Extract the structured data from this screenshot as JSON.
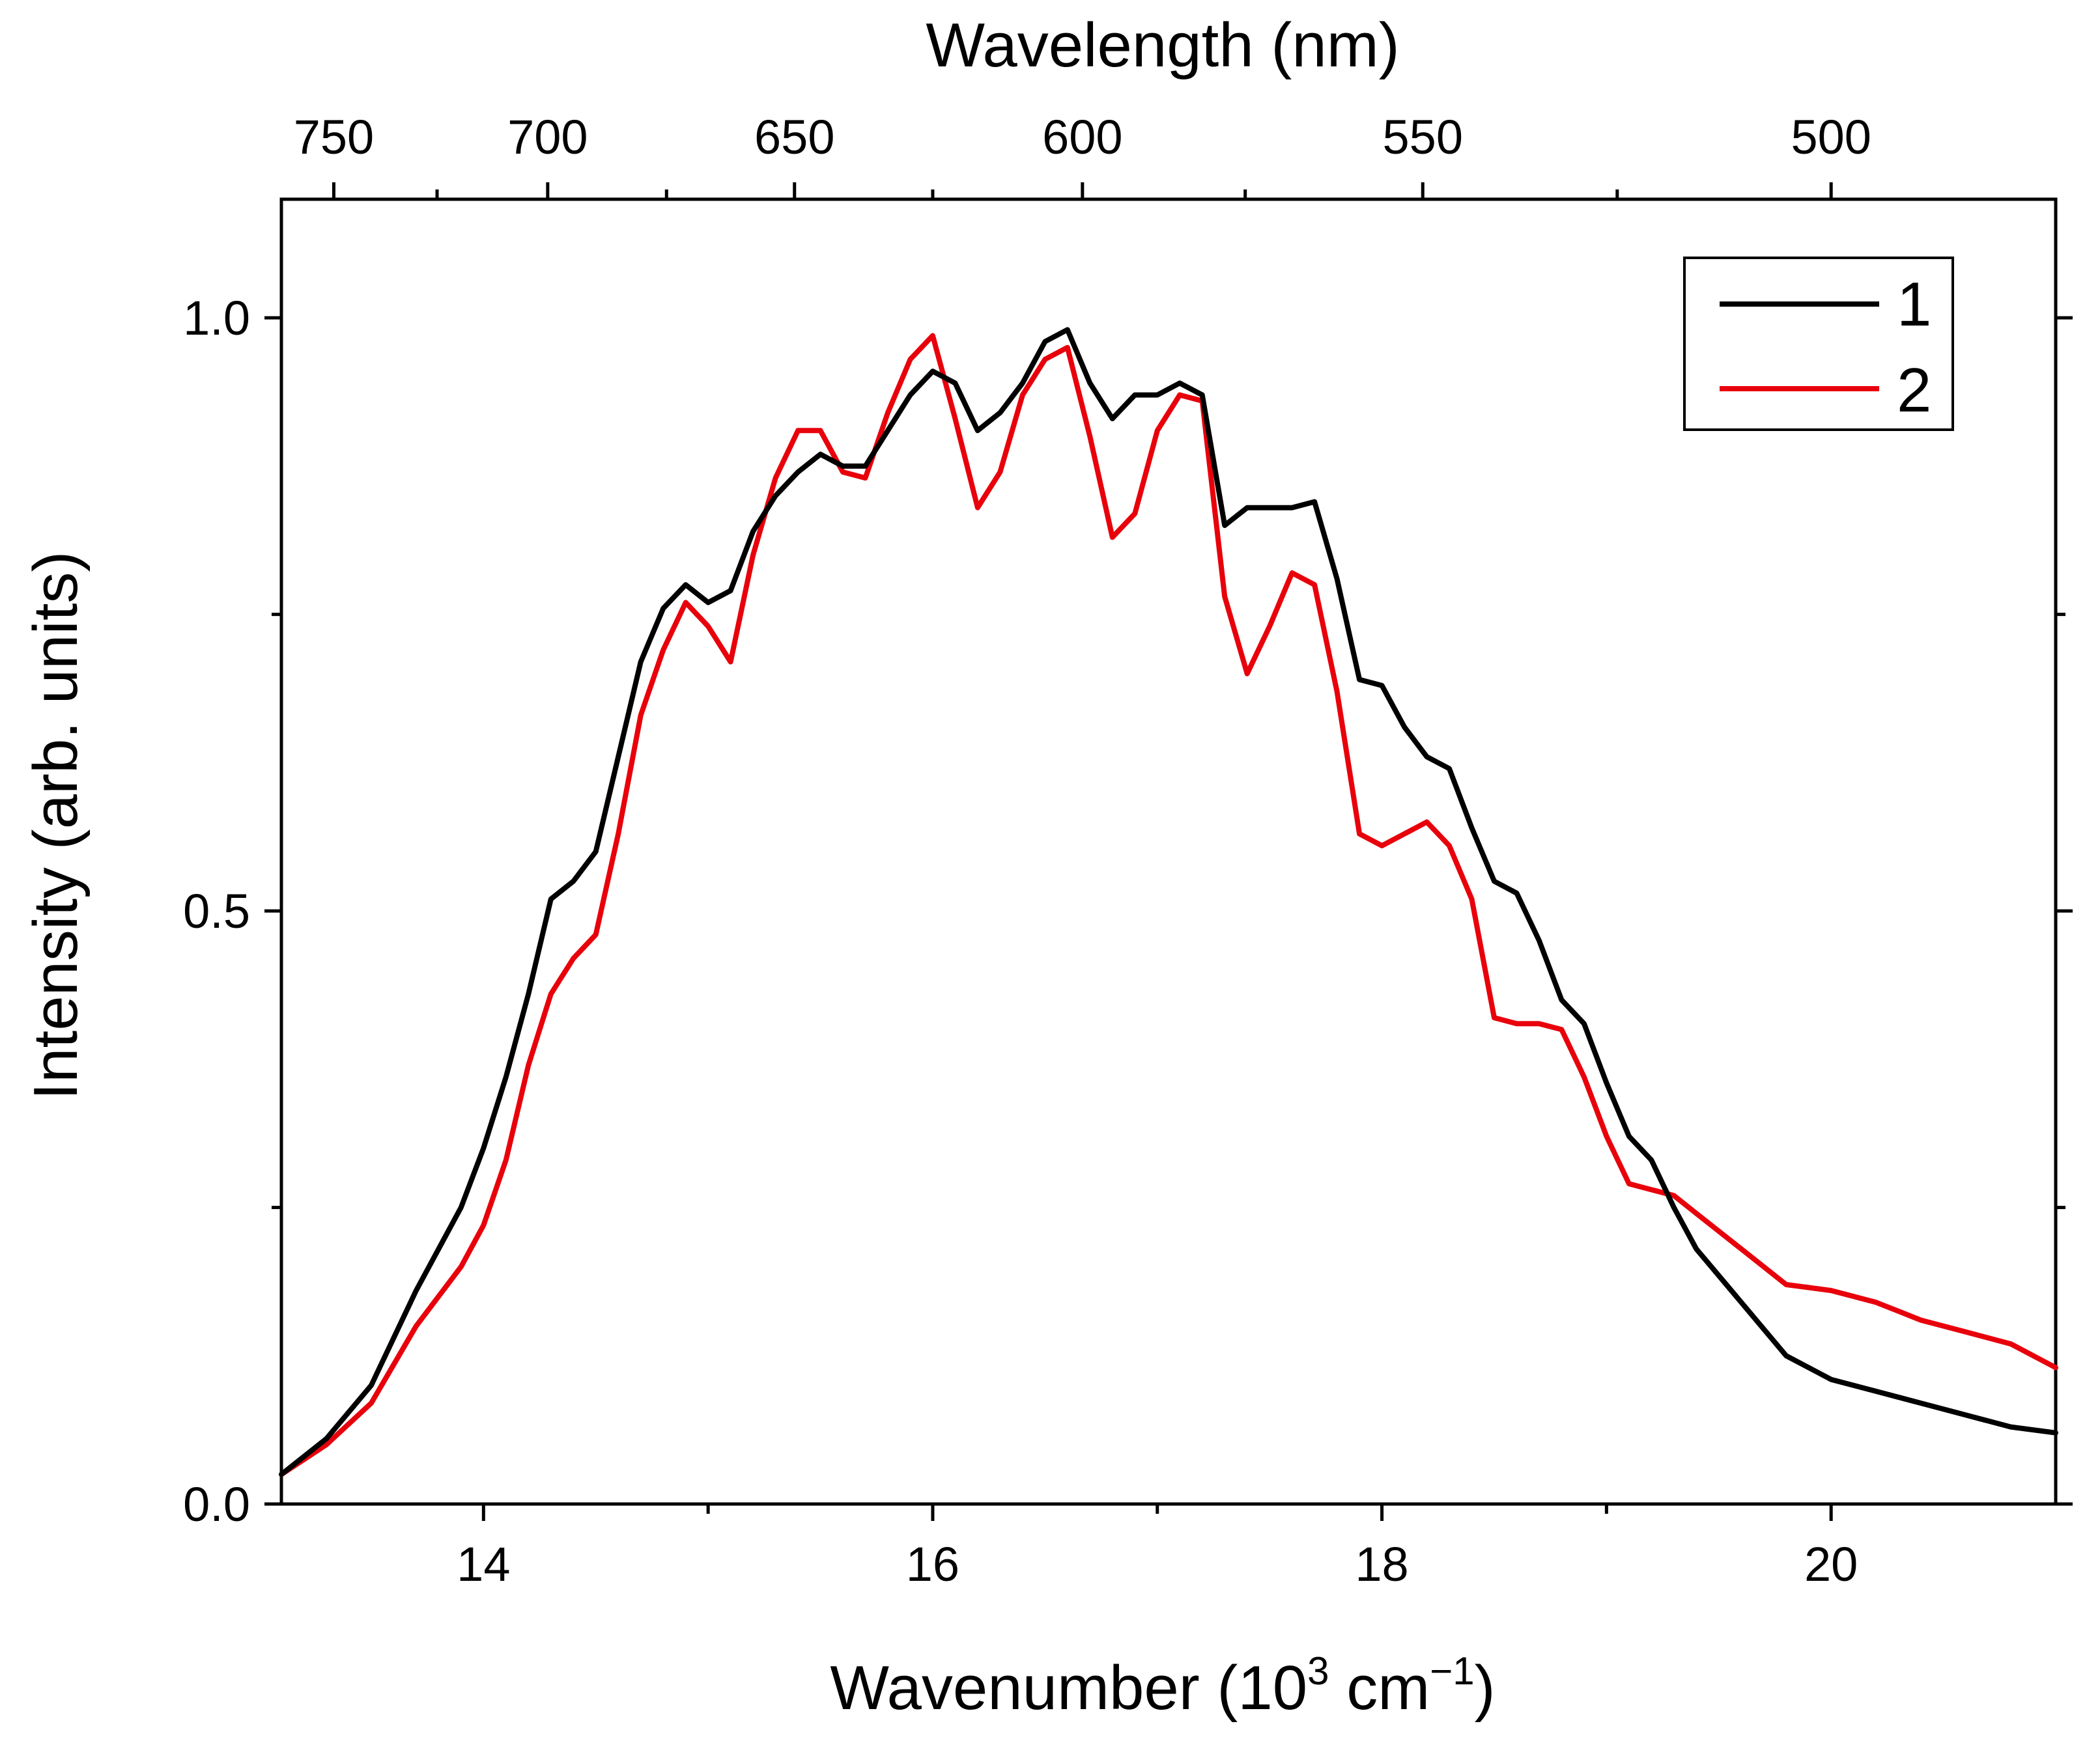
{
  "chart_data": {
    "type": "line",
    "title": "",
    "xlabel_prefix": "Wavenumber (10",
    "xlabel_sup1": "3",
    "xlabel_mid": " cm",
    "xlabel_sup2": "−1",
    "xlabel_suffix": ")",
    "ylabel": "Intensity (arb. units)",
    "top_xlabel": "Wavelength (nm)",
    "xlim": [
      13.1,
      21.0
    ],
    "ylim": [
      0.0,
      1.1
    ],
    "x_ticks": [
      14,
      16,
      18,
      20
    ],
    "x_tick_labels": [
      "14",
      "16",
      "18",
      "20"
    ],
    "x_minor_ticks": [
      15,
      17,
      19
    ],
    "y_ticks": [
      0.0,
      0.5,
      1.0
    ],
    "y_tick_labels": [
      "0.0",
      "0.5",
      "1.0"
    ],
    "y_minor_ticks": [
      0.25,
      0.75
    ],
    "top_ticks_nm": [
      750,
      700,
      650,
      600,
      550,
      500
    ],
    "top_tick_labels": [
      "750",
      "700",
      "650",
      "600",
      "550",
      "500"
    ],
    "top_minor_ticks_nm": [
      725,
      675,
      625,
      575,
      525
    ],
    "legend_position": "top-right",
    "series": [
      {
        "name": "1",
        "color": "#000000",
        "x": [
          13.1,
          13.3,
          13.5,
          13.7,
          13.9,
          14.0,
          14.1,
          14.2,
          14.3,
          14.4,
          14.5,
          14.6,
          14.7,
          14.8,
          14.9,
          15.0,
          15.1,
          15.2,
          15.3,
          15.4,
          15.5,
          15.6,
          15.7,
          15.8,
          15.9,
          16.0,
          16.1,
          16.2,
          16.3,
          16.4,
          16.5,
          16.6,
          16.7,
          16.8,
          16.9,
          17.0,
          17.1,
          17.2,
          17.3,
          17.4,
          17.5,
          17.6,
          17.7,
          17.8,
          17.9,
          18.0,
          18.1,
          18.2,
          18.3,
          18.4,
          18.5,
          18.6,
          18.7,
          18.8,
          18.9,
          19.0,
          19.1,
          19.2,
          19.3,
          19.4,
          19.6,
          19.8,
          20.0,
          20.2,
          20.4,
          20.6,
          20.8,
          21.0
        ],
        "y": [
          0.025,
          0.055,
          0.1,
          0.18,
          0.25,
          0.3,
          0.36,
          0.43,
          0.51,
          0.525,
          0.55,
          0.63,
          0.71,
          0.755,
          0.775,
          0.76,
          0.77,
          0.82,
          0.85,
          0.87,
          0.885,
          0.875,
          0.875,
          0.905,
          0.935,
          0.955,
          0.945,
          0.905,
          0.92,
          0.945,
          0.98,
          0.99,
          0.945,
          0.915,
          0.935,
          0.935,
          0.945,
          0.935,
          0.825,
          0.84,
          0.84,
          0.84,
          0.845,
          0.78,
          0.695,
          0.69,
          0.655,
          0.63,
          0.62,
          0.57,
          0.525,
          0.515,
          0.475,
          0.425,
          0.405,
          0.355,
          0.31,
          0.29,
          0.25,
          0.215,
          0.17,
          0.125,
          0.105,
          0.095,
          0.085,
          0.075,
          0.065,
          0.06
        ]
      },
      {
        "name": "2",
        "color": "#e8000b",
        "x": [
          13.1,
          13.3,
          13.5,
          13.7,
          13.9,
          14.0,
          14.1,
          14.2,
          14.3,
          14.4,
          14.5,
          14.6,
          14.7,
          14.8,
          14.9,
          15.0,
          15.1,
          15.2,
          15.3,
          15.4,
          15.5,
          15.6,
          15.7,
          15.8,
          15.9,
          16.0,
          16.1,
          16.2,
          16.3,
          16.4,
          16.5,
          16.6,
          16.7,
          16.8,
          16.9,
          17.0,
          17.1,
          17.2,
          17.3,
          17.4,
          17.5,
          17.6,
          17.7,
          17.8,
          17.9,
          18.0,
          18.1,
          18.2,
          18.3,
          18.4,
          18.5,
          18.6,
          18.7,
          18.8,
          18.9,
          19.0,
          19.1,
          19.2,
          19.3,
          19.4,
          19.6,
          19.8,
          20.0,
          20.2,
          20.4,
          20.6,
          20.8,
          21.0
        ],
        "y": [
          0.025,
          0.05,
          0.085,
          0.15,
          0.2,
          0.235,
          0.29,
          0.37,
          0.43,
          0.46,
          0.48,
          0.565,
          0.665,
          0.72,
          0.76,
          0.74,
          0.71,
          0.8,
          0.865,
          0.905,
          0.905,
          0.87,
          0.865,
          0.92,
          0.965,
          0.985,
          0.915,
          0.84,
          0.87,
          0.935,
          0.965,
          0.975,
          0.9,
          0.815,
          0.835,
          0.905,
          0.935,
          0.93,
          0.765,
          0.7,
          0.74,
          0.785,
          0.775,
          0.685,
          0.565,
          0.555,
          0.565,
          0.575,
          0.555,
          0.51,
          0.41,
          0.405,
          0.405,
          0.4,
          0.36,
          0.31,
          0.27,
          0.265,
          0.26,
          0.245,
          0.215,
          0.185,
          0.18,
          0.17,
          0.155,
          0.145,
          0.135,
          0.115
        ]
      }
    ]
  }
}
